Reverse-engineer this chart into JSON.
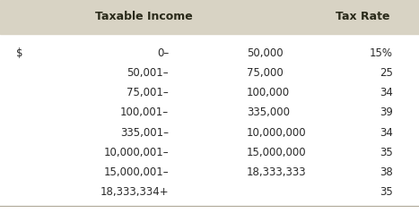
{
  "header_bg": "#d8d3c4",
  "header_text_color": "#2a2a1a",
  "body_bg": "#ffffff",
  "body_text_color": "#2a2a2a",
  "header_col1": "Taxable Income",
  "header_col2": "Tax Rate",
  "dollar_sign": "$",
  "col1_from": [
    "0–",
    "50,001–",
    "75,001–",
    "100,001–",
    "335,001–",
    "10,000,001–",
    "15,000,001–",
    "18,333,334+"
  ],
  "col1_to": [
    "50,000",
    "75,000",
    "100,000",
    "335,000",
    "10,000,000",
    "15,000,000",
    "18,333,333",
    ""
  ],
  "col2": [
    "15%",
    "25",
    "34",
    "39",
    "34",
    "35",
    "38",
    "35"
  ],
  "figsize": [
    4.67,
    2.38
  ],
  "dpi": 100,
  "font_size_header": 9.0,
  "font_size_body": 8.5
}
